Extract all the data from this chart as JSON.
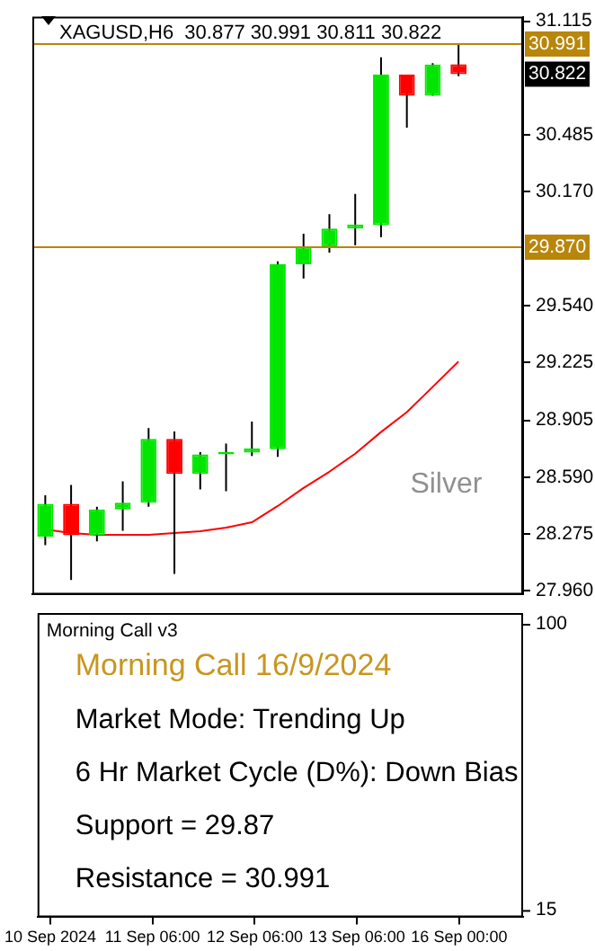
{
  "chart_data": [
    {
      "type": "candlestick",
      "title": "XAGUSD,H6  30.877 30.991 30.811 30.822",
      "tick_labels": "y",
      "grid": false,
      "categories": [
        "10 Sep 2024",
        null,
        null,
        null,
        "11 Sep 06:00",
        null,
        null,
        null,
        "12 Sep 06:00",
        null,
        null,
        null,
        "13 Sep 06:00",
        null,
        null,
        null,
        "16 Sep 00:00",
        null,
        null
      ],
      "ohlc": [
        [
          28.261,
          28.49,
          28.213,
          28.442
        ],
        [
          28.442,
          28.547,
          28.02,
          28.268
        ],
        [
          28.268,
          28.426,
          28.235,
          28.411
        ],
        [
          28.411,
          28.567,
          28.293,
          28.449
        ],
        [
          28.449,
          28.862,
          28.426,
          28.802
        ],
        [
          28.802,
          28.843,
          28.054,
          28.608
        ],
        [
          28.608,
          28.729,
          28.522,
          28.716
        ],
        [
          28.716,
          28.776,
          28.512,
          28.73
        ],
        [
          28.726,
          28.898,
          28.707,
          28.748
        ],
        [
          28.745,
          29.785,
          28.703,
          29.769
        ],
        [
          29.769,
          29.938,
          29.69,
          29.865
        ],
        [
          29.865,
          30.046,
          29.833,
          29.967
        ],
        [
          29.967,
          30.158,
          29.874,
          29.989
        ],
        [
          29.986,
          30.915,
          29.919,
          30.819
        ],
        [
          30.819,
          30.819,
          30.526,
          30.702
        ],
        [
          30.702,
          30.883,
          30.702,
          30.876
        ],
        [
          30.877,
          30.991,
          30.811,
          30.822
        ],
        null,
        null
      ],
      "colors": [
        "#00e600",
        "#ff0000",
        "#00e600",
        "#00e600",
        "#00e600",
        "#ff0000",
        "#00e600",
        "#00e600",
        "#00e600",
        "#00e600",
        "#00e600",
        "#00e600",
        "#00e600",
        "#00e600",
        "#ff0000",
        "#00e600",
        "#ff0000",
        null,
        null
      ],
      "series": [
        {
          "type": "line",
          "color": "#ff0000",
          "values": [
            28.3,
            28.28,
            28.27,
            28.27,
            28.27,
            28.28,
            28.29,
            28.31,
            28.34,
            28.43,
            28.53,
            28.62,
            28.72,
            28.84,
            28.95,
            29.09,
            29.23,
            null,
            null
          ]
        }
      ],
      "ylim": [
        27.94,
        31.14
      ],
      "yticks": [
        {
          "value": 31.115,
          "label": "31.115"
        },
        {
          "value": 30.485,
          "label": "30.485"
        },
        {
          "value": 30.17,
          "label": "30.170"
        },
        {
          "value": 29.54,
          "label": "29.540"
        },
        {
          "value": 29.225,
          "label": "29.225"
        },
        {
          "value": 28.905,
          "label": "28.905"
        },
        {
          "value": 28.59,
          "label": "28.590"
        },
        {
          "value": 28.275,
          "label": "28.275"
        },
        {
          "value": 27.96,
          "label": "27.960"
        }
      ],
      "ref_lines": [
        {
          "axis": "y",
          "value": 30.991,
          "label": "30.991",
          "color": "#b8860b"
        },
        {
          "axis": "y",
          "value": 29.87,
          "label": "29.870",
          "color": "#b8860b"
        }
      ],
      "annotations": [
        "Silver",
        {
          "text": "30.822",
          "y": 30.822
        }
      ]
    },
    {
      "type": "other",
      "title": "Morning Call v3",
      "annotations": [
        "Morning Call 16/9/2024",
        "Market Mode: Trending Up",
        "6 Hr Market Cycle (D%): Down Bias",
        "Support = 29.87",
        "Resistance = 30.991",
        "100",
        "15"
      ]
    }
  ]
}
